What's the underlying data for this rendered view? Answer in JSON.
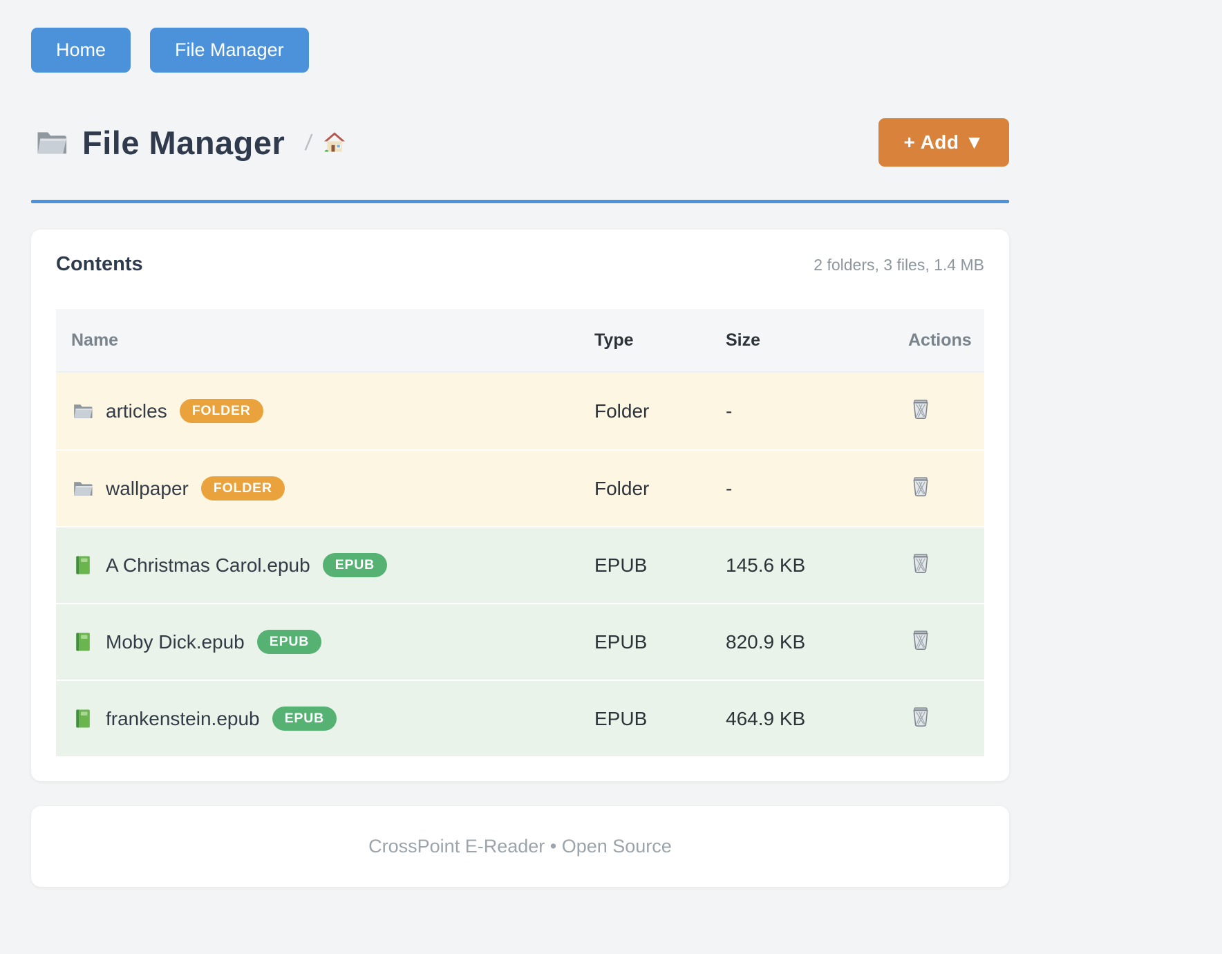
{
  "nav": {
    "home_label": "Home",
    "file_manager_label": "File Manager"
  },
  "header": {
    "icon": "folder",
    "title": "File Manager",
    "breadcrumb_separator": "/",
    "breadcrumb_home_icon": "home",
    "add_button_label": "+ Add ▼"
  },
  "contents": {
    "title": "Contents",
    "summary": "2 folders, 3 files, 1.4 MB",
    "columns": [
      "Name",
      "Type",
      "Size",
      "Actions"
    ],
    "rows": [
      {
        "icon": "folder",
        "name": "articles",
        "badge": "FOLDER",
        "kind": "folder",
        "type": "Folder",
        "size": "-",
        "action_icon": "trash"
      },
      {
        "icon": "folder",
        "name": "wallpaper",
        "badge": "FOLDER",
        "kind": "folder",
        "type": "Folder",
        "size": "-",
        "action_icon": "trash"
      },
      {
        "icon": "book",
        "name": "A Christmas Carol.epub",
        "badge": "EPUB",
        "kind": "epub",
        "type": "EPUB",
        "size": "145.6 KB",
        "action_icon": "trash"
      },
      {
        "icon": "book",
        "name": "Moby Dick.epub",
        "badge": "EPUB",
        "kind": "epub",
        "type": "EPUB",
        "size": "820.9 KB",
        "action_icon": "trash"
      },
      {
        "icon": "book",
        "name": "frankenstein.epub",
        "badge": "EPUB",
        "kind": "epub",
        "type": "EPUB",
        "size": "464.9 KB",
        "action_icon": "trash"
      }
    ]
  },
  "footer": {
    "text": "CrossPoint E-Reader • Open Source"
  },
  "colors": {
    "blue": "#4b92db",
    "orange": "#d8823b",
    "badge-folder": "#eaa23c",
    "badge-epub": "#55b273",
    "row-folder-bg": "#fdf6e2",
    "row-epub-bg": "#e9f3ea"
  }
}
